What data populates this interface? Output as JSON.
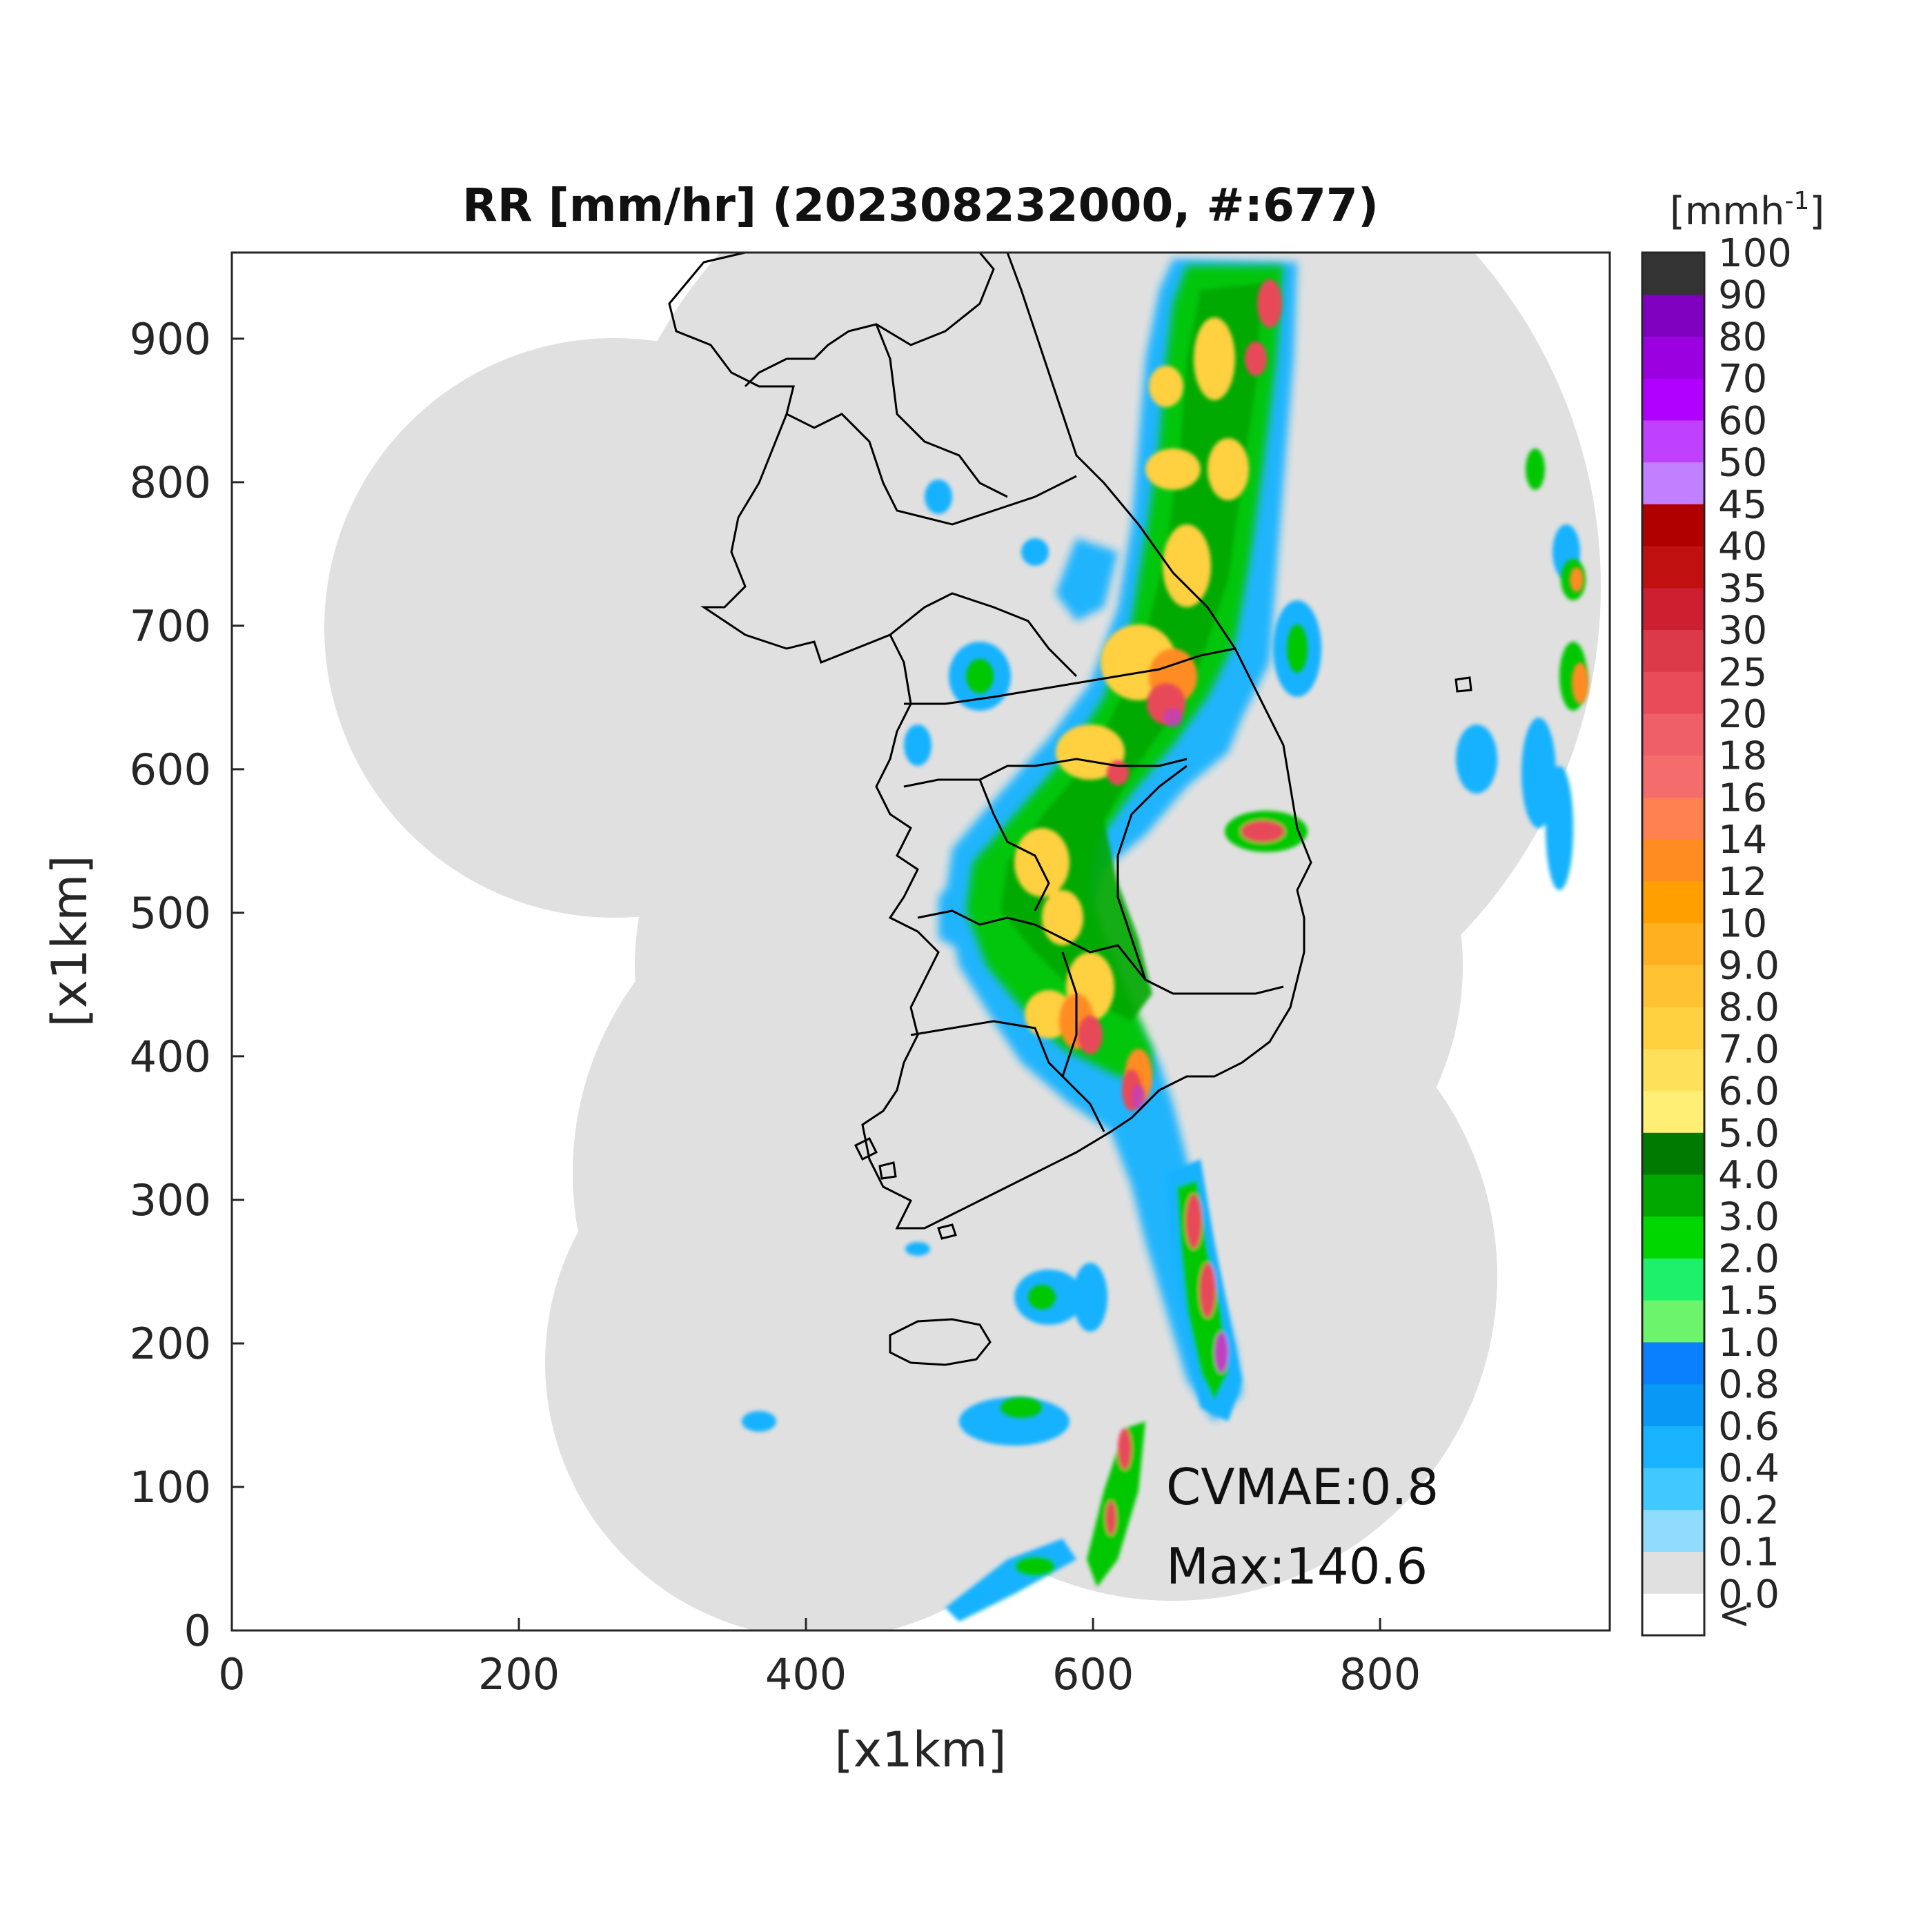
{
  "title": "RR [mm/hr] (202308232000, #:677)",
  "x_axis": {
    "label": "[x1km]",
    "ticks": [
      "0",
      "200",
      "400",
      "600",
      "800"
    ],
    "range": [
      0,
      960
    ]
  },
  "y_axis": {
    "label": "[x1km]",
    "ticks": [
      "0",
      "100",
      "200",
      "300",
      "400",
      "500",
      "600",
      "700",
      "800",
      "900"
    ],
    "range": [
      0,
      960
    ]
  },
  "colorbar": {
    "unit": "[mmh",
    "unit_sup": "-1",
    "unit_close": "]",
    "levels": [
      {
        "label": "<",
        "color": "#ffffff"
      },
      {
        "label": "0.0",
        "color": "#e0e0e0"
      },
      {
        "label": "0.1",
        "color": "#8fdcff"
      },
      {
        "label": "0.2",
        "color": "#40c8ff"
      },
      {
        "label": "0.4",
        "color": "#18b2ff"
      },
      {
        "label": "0.6",
        "color": "#0998f5"
      },
      {
        "label": "0.8",
        "color": "#0a80ff"
      },
      {
        "label": "1.0",
        "color": "#6cf56c"
      },
      {
        "label": "1.5",
        "color": "#1ef06a"
      },
      {
        "label": "2.0",
        "color": "#00d600"
      },
      {
        "label": "3.0",
        "color": "#00a800"
      },
      {
        "label": "4.0",
        "color": "#007a00"
      },
      {
        "label": "5.0",
        "color": "#fff075"
      },
      {
        "label": "6.0",
        "color": "#ffe05a"
      },
      {
        "label": "7.0",
        "color": "#ffd040"
      },
      {
        "label": "8.0",
        "color": "#ffc233"
      },
      {
        "label": "9.0",
        "color": "#ffb020"
      },
      {
        "label": "10",
        "color": "#ffa000"
      },
      {
        "label": "12",
        "color": "#ff8c20"
      },
      {
        "label": "14",
        "color": "#ff8050"
      },
      {
        "label": "16",
        "color": "#f56c6c"
      },
      {
        "label": "18",
        "color": "#ee5f68"
      },
      {
        "label": "20",
        "color": "#e84a58"
      },
      {
        "label": "25",
        "color": "#dc3a48"
      },
      {
        "label": "30",
        "color": "#cc2030"
      },
      {
        "label": "35",
        "color": "#c01010"
      },
      {
        "label": "40",
        "color": "#b00000"
      },
      {
        "label": "45",
        "color": "#c080ff"
      },
      {
        "label": "50",
        "color": "#c040ff"
      },
      {
        "label": "60",
        "color": "#b000ff"
      },
      {
        "label": "70",
        "color": "#9a00e0"
      },
      {
        "label": "80",
        "color": "#8000c0"
      },
      {
        "label": "90",
        "color": "#333333"
      },
      {
        "label": "100",
        "color": ""
      }
    ]
  },
  "annotations": {
    "cvmae": "CVMAE:0.8",
    "max": "Max:140.6"
  },
  "colors": {
    "coverage": "#e0e0e0",
    "border": "#000000"
  }
}
